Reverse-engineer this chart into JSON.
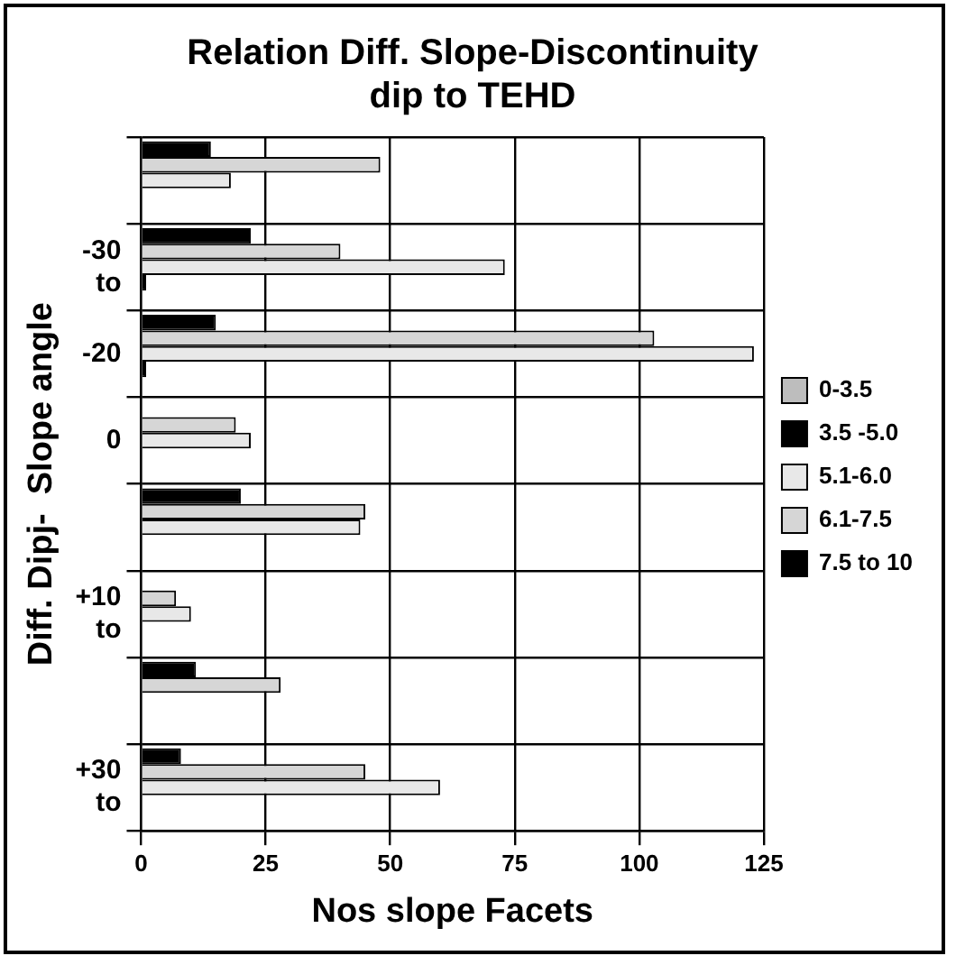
{
  "chart_data": {
    "type": "bar",
    "orientation": "horizontal",
    "title": "Relation Diff. Slope-Discontinuity dip to TEHD",
    "xlabel": "Nos slope Facets",
    "ylabel": "Diff. Dipj-  Slope angle",
    "categories": [
      null,
      "-30\nto",
      "-20",
      "0",
      null,
      "+10\nto",
      null,
      "+30\nto"
    ],
    "series": [
      {
        "name": "0-3.5",
        "color": "#bdbdbd",
        "values": [
          0,
          0,
          0,
          0,
          0,
          0,
          0,
          0
        ]
      },
      {
        "name": "3.5 -5.0",
        "color": "#000000",
        "values": [
          0,
          1,
          1,
          0,
          0,
          0,
          0,
          0
        ]
      },
      {
        "name": "5.1-6.0",
        "color": "#e8e8e8",
        "values": [
          18,
          73,
          123,
          22,
          44,
          10,
          0,
          60
        ]
      },
      {
        "name": "6.1-7.5",
        "color": "#d6d6d6",
        "values": [
          48,
          40,
          103,
          19,
          45,
          7,
          28,
          45
        ]
      },
      {
        "name": "7.5 to 10",
        "color": "#000000",
        "values": [
          14,
          22,
          15,
          0,
          20,
          0,
          11,
          8
        ]
      }
    ],
    "xlim": [
      0,
      125
    ],
    "xticks": [
      0,
      25,
      50,
      75,
      100,
      125
    ],
    "grid": true,
    "legend": "right"
  }
}
